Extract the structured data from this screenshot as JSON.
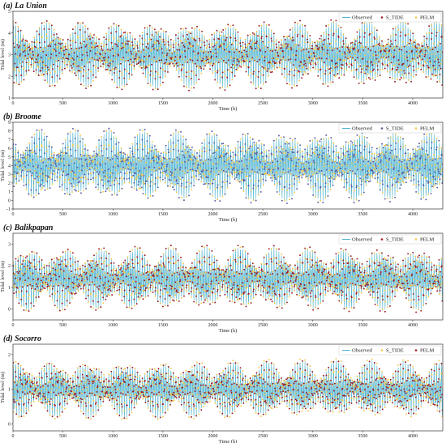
{
  "colors": {
    "observed": "#4fb3d1",
    "s_tide": "#5a5aa0",
    "pelm": "#f2c94c",
    "red": "#9b1c24"
  },
  "chart_data": [
    {
      "type": "line",
      "title": "(a) La Union",
      "xlabel": "Time (h)",
      "ylabel": "Tidal level (m)",
      "xlim": [
        0,
        4300
      ],
      "ylim": [
        1,
        5
      ],
      "xticks": [
        0,
        500,
        1000,
        1500,
        2000,
        2500,
        3000,
        3500,
        4000
      ],
      "yticks": [
        1,
        2,
        3,
        4,
        5
      ],
      "mean": 3.0,
      "amplitude": 1.6,
      "legend": [
        "Observed",
        "S_TIDE",
        "PELM"
      ],
      "legend_position": "top-right",
      "series": [
        {
          "name": "Observed",
          "style": "line",
          "color": "#4fb3d1"
        },
        {
          "name": "S_TIDE",
          "style": "dots",
          "color": "#9b1c24"
        },
        {
          "name": "PELM",
          "style": "dots",
          "color": "#f2c94c"
        }
      ]
    },
    {
      "type": "line",
      "title": "(b) Broome",
      "xlabel": "Time (h)",
      "ylabel": "Tidal level (m)",
      "xlim": [
        0,
        4300
      ],
      "ylim": [
        -1,
        9
      ],
      "xticks": [
        0,
        500,
        1000,
        1500,
        2000,
        2500,
        3000,
        3500,
        4000
      ],
      "yticks": [
        -1,
        0,
        1,
        2,
        3,
        4,
        5,
        6,
        7,
        8,
        9
      ],
      "mean": 4.0,
      "amplitude": 4.2,
      "legend": [
        "Observed",
        "S_TIDE",
        "PELM"
      ],
      "legend_position": "top-right",
      "series": [
        {
          "name": "Observed",
          "style": "line",
          "color": "#4fb3d1"
        },
        {
          "name": "S_TIDE",
          "style": "dots",
          "color": "#5a5aa0"
        },
        {
          "name": "PELM",
          "style": "dots",
          "color": "#f2c94c"
        }
      ]
    },
    {
      "type": "line",
      "title": "(c) Balikpapan",
      "xlabel": "Time (h)",
      "ylabel": "Tidal level (m)",
      "xlim": [
        0,
        4300
      ],
      "ylim": [
        -0.5,
        3.5
      ],
      "xticks": [
        0,
        500,
        1000,
        1500,
        2000,
        2500,
        3000,
        3500,
        4000
      ],
      "yticks": [
        0,
        1,
        2,
        3
      ],
      "mean": 1.4,
      "amplitude": 1.5,
      "legend": [
        "Observed",
        "S_TIDE",
        "PELM"
      ],
      "legend_position": "top-right",
      "series": [
        {
          "name": "Observed",
          "style": "line",
          "color": "#4fb3d1"
        },
        {
          "name": "S_TIDE",
          "style": "dots",
          "color": "#9b1c24"
        },
        {
          "name": "PELM",
          "style": "dots",
          "color": "#f2c94c"
        }
      ]
    },
    {
      "type": "line",
      "title": "(d) Socorro",
      "xlabel": "Time (h)",
      "ylabel": "Tidal level (m)",
      "xlim": [
        0,
        4300
      ],
      "ylim": [
        -0.2,
        2.3
      ],
      "xticks": [
        0,
        500,
        1000,
        1500,
        2000,
        2500,
        3000,
        3500,
        4000
      ],
      "yticks": [
        0,
        1,
        2
      ],
      "mean": 1.0,
      "amplitude": 0.85,
      "legend": [
        "Observed",
        "S_TIDE",
        "PELM"
      ],
      "legend_position": "top-right",
      "series": [
        {
          "name": "Observed",
          "style": "line",
          "color": "#4fb3d1"
        },
        {
          "name": "S_TIDE",
          "style": "dots",
          "color": "#f2c94c"
        },
        {
          "name": "PELM",
          "style": "dots",
          "color": "#9b1c24"
        }
      ]
    }
  ]
}
